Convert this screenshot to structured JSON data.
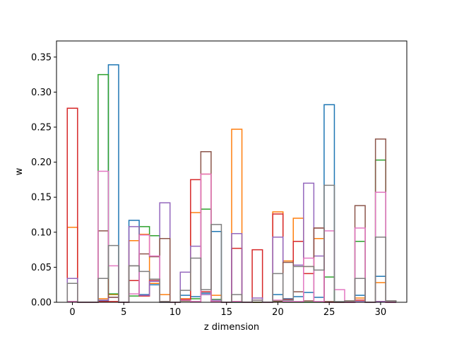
{
  "chart_data": {
    "type": "step",
    "title": "",
    "xlabel": "z dimension",
    "ylabel": "w",
    "xlim": [
      -1.55,
      32.55
    ],
    "ylim": [
      0,
      0.373
    ],
    "xticks": [
      0,
      5,
      10,
      15,
      20,
      25,
      30
    ],
    "yticks": [
      "0.00",
      "0.05",
      "0.10",
      "0.15",
      "0.20",
      "0.25",
      "0.30",
      "0.35"
    ],
    "grid": false,
    "legend": "none",
    "x": [
      0,
      1,
      2,
      3,
      4,
      5,
      6,
      7,
      8,
      9,
      10,
      11,
      12,
      13,
      14,
      15,
      16,
      17,
      18,
      19,
      20,
      21,
      22,
      23,
      24,
      25,
      26,
      27,
      28,
      29,
      30,
      31
    ],
    "series": [
      {
        "color": "#1f77b4",
        "values": [
          0.001,
          0,
          0,
          0.002,
          0.339,
          0,
          0.117,
          0.011,
          0.025,
          0,
          0,
          0.01,
          0.008,
          0.013,
          0.101,
          0,
          0,
          0,
          0,
          0,
          0.011,
          0.005,
          0.008,
          0.014,
          0.007,
          0.282,
          0,
          0.002,
          0.01,
          0,
          0.037,
          0
        ]
      },
      {
        "color": "#ff7f0e",
        "values": [
          0.107,
          0,
          0,
          0.005,
          0.011,
          0,
          0.088,
          0.097,
          0.027,
          0.011,
          0,
          0.005,
          0.128,
          0.183,
          0.01,
          0,
          0.247,
          0,
          0,
          0,
          0.129,
          0.059,
          0.12,
          0.051,
          0.091,
          0,
          0,
          0.002,
          0.006,
          0,
          0.028,
          0
        ]
      },
      {
        "color": "#2ca02c",
        "values": [
          0.001,
          0,
          0,
          0.325,
          0.012,
          0,
          0.009,
          0.108,
          0.095,
          0,
          0,
          0.002,
          0.005,
          0.133,
          0.004,
          0,
          0,
          0,
          0,
          0,
          0.002,
          0,
          0,
          0,
          0,
          0.036,
          0,
          0,
          0.087,
          0,
          0.203,
          0
        ]
      },
      {
        "color": "#d62728",
        "values": [
          0.277,
          0,
          0,
          0.001,
          0.001,
          0,
          0.031,
          0.009,
          0.031,
          0.001,
          0,
          0.004,
          0.175,
          0.015,
          0.001,
          0,
          0.077,
          0,
          0.075,
          0,
          0.126,
          0.004,
          0.087,
          0.041,
          0.106,
          0,
          0,
          0,
          0.003,
          0,
          0.001,
          0
        ]
      },
      {
        "color": "#9467bd",
        "values": [
          0.034,
          0,
          0,
          0.003,
          0.007,
          0,
          0.108,
          0.01,
          0.03,
          0.142,
          0,
          0.043,
          0.08,
          0.011,
          0.003,
          0,
          0.098,
          0,
          0.006,
          0,
          0.093,
          0.003,
          0.053,
          0.17,
          0.066,
          0,
          0,
          0,
          0.001,
          0,
          0.001,
          0
        ]
      },
      {
        "color": "#8c564b",
        "values": [
          0.001,
          0,
          0,
          0.102,
          0.007,
          0,
          0.052,
          0.069,
          0.065,
          0.091,
          0,
          0.002,
          0.001,
          0.215,
          0.001,
          0,
          0.001,
          0,
          0,
          0,
          0.001,
          0.057,
          0.015,
          0.002,
          0.106,
          0.001,
          0,
          0,
          0.138,
          0,
          0.233,
          0.002
        ]
      },
      {
        "color": "#e377c2",
        "values": [
          0.001,
          0,
          0,
          0.187,
          0.052,
          0,
          0.012,
          0.096,
          0.066,
          0,
          0,
          0.003,
          0.001,
          0.183,
          0.001,
          0,
          0.001,
          0,
          0.003,
          0,
          0.003,
          0.001,
          0.001,
          0.063,
          0.001,
          0.102,
          0.018,
          0,
          0.106,
          0,
          0.157,
          0
        ]
      },
      {
        "color": "#7f7f7f",
        "values": [
          0.027,
          0,
          0,
          0.034,
          0.081,
          0,
          0.052,
          0.044,
          0.033,
          0.001,
          0,
          0.017,
          0.063,
          0.018,
          0.111,
          0,
          0.011,
          0,
          0.003,
          0,
          0.041,
          0.003,
          0.051,
          0.051,
          0.046,
          0.167,
          0.001,
          0.002,
          0.034,
          0,
          0.093,
          0.002
        ]
      }
    ]
  }
}
